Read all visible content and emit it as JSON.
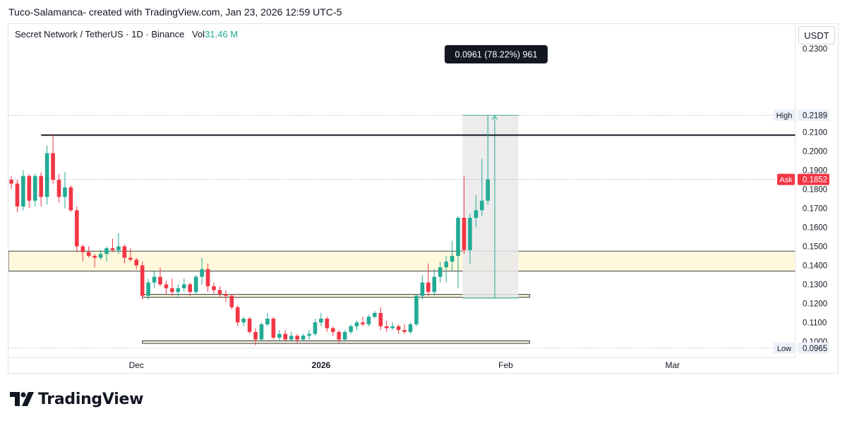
{
  "header": {
    "credit": "Tuco-Salamanca- created with TradingView.com, Jan 23, 2026 12:59 UTC-5"
  },
  "legend": {
    "symbol": "Secret Network / TetherUS · 1D · Binance",
    "vol_label": "Vol",
    "vol_value": "31.46 M"
  },
  "currency_button": "USDT",
  "footer": {
    "brand": "TradingView"
  },
  "colors": {
    "up": "#22ab94",
    "down": "#f23645",
    "zone_fill": "#fff8dc",
    "measure_fill": "#e9e9e9",
    "ask_bg": "#f23645",
    "high_low_bg": "#ebf1f9"
  },
  "chart_data": {
    "type": "candlestick",
    "symbol": "SCRT/USDT",
    "interval": "1D",
    "y_axis": {
      "range": [
        0.0955,
        0.2585
      ],
      "ticks": [
        0.1,
        0.11,
        0.12,
        0.13,
        0.14,
        0.15,
        0.16,
        0.17,
        0.18,
        0.19,
        0.2,
        0.21
      ],
      "tick_labels": [
        "0.1000",
        "0.1100",
        "0.1200",
        "0.1300",
        "0.1400",
        "0.1500",
        "0.1600",
        "0.1700",
        "0.1800",
        "0.1900",
        "0.2000",
        "0.2100"
      ],
      "top_partial_label": "0.2300"
    },
    "x_axis": {
      "start_date": "2025-11-10",
      "end_date": "2026-03-26",
      "tick_labels": [
        {
          "date": "2025-12-01",
          "label": "Dec",
          "bold": false
        },
        {
          "date": "2026-01-01",
          "label": "2026",
          "bold": true
        },
        {
          "date": "2026-02-01",
          "label": "Feb",
          "bold": false
        },
        {
          "date": "2026-03-01",
          "label": "Mar",
          "bold": false
        }
      ]
    },
    "candles": [
      {
        "date": "2025-11-10",
        "o": 0.185,
        "h": 0.187,
        "l": 0.18,
        "c": 0.183
      },
      {
        "date": "2025-11-11",
        "o": 0.183,
        "h": 0.185,
        "l": 0.168,
        "c": 0.171
      },
      {
        "date": "2025-11-12",
        "o": 0.171,
        "h": 0.19,
        "l": 0.169,
        "c": 0.187
      },
      {
        "date": "2025-11-13",
        "o": 0.187,
        "h": 0.188,
        "l": 0.17,
        "c": 0.174
      },
      {
        "date": "2025-11-14",
        "o": 0.174,
        "h": 0.188,
        "l": 0.171,
        "c": 0.187
      },
      {
        "date": "2025-11-15",
        "o": 0.187,
        "h": 0.189,
        "l": 0.171,
        "c": 0.176
      },
      {
        "date": "2025-11-16",
        "o": 0.176,
        "h": 0.203,
        "l": 0.172,
        "c": 0.199
      },
      {
        "date": "2025-11-17",
        "o": 0.199,
        "h": 0.209,
        "l": 0.183,
        "c": 0.185
      },
      {
        "date": "2025-11-18",
        "o": 0.185,
        "h": 0.188,
        "l": 0.173,
        "c": 0.176
      },
      {
        "date": "2025-11-19",
        "o": 0.176,
        "h": 0.189,
        "l": 0.17,
        "c": 0.181
      },
      {
        "date": "2025-11-20",
        "o": 0.181,
        "h": 0.182,
        "l": 0.168,
        "c": 0.169
      },
      {
        "date": "2025-11-21",
        "o": 0.169,
        "h": 0.171,
        "l": 0.147,
        "c": 0.15
      },
      {
        "date": "2025-11-22",
        "o": 0.15,
        "h": 0.151,
        "l": 0.142,
        "c": 0.147
      },
      {
        "date": "2025-11-23",
        "o": 0.147,
        "h": 0.15,
        "l": 0.144,
        "c": 0.145
      },
      {
        "date": "2025-11-24",
        "o": 0.145,
        "h": 0.146,
        "l": 0.139,
        "c": 0.144
      },
      {
        "date": "2025-11-25",
        "o": 0.144,
        "h": 0.148,
        "l": 0.143,
        "c": 0.146
      },
      {
        "date": "2025-11-26",
        "o": 0.146,
        "h": 0.15,
        "l": 0.142,
        "c": 0.149
      },
      {
        "date": "2025-11-27",
        "o": 0.149,
        "h": 0.154,
        "l": 0.147,
        "c": 0.148
      },
      {
        "date": "2025-11-28",
        "o": 0.148,
        "h": 0.157,
        "l": 0.146,
        "c": 0.15
      },
      {
        "date": "2025-11-29",
        "o": 0.15,
        "h": 0.151,
        "l": 0.141,
        "c": 0.144
      },
      {
        "date": "2025-11-30",
        "o": 0.144,
        "h": 0.149,
        "l": 0.142,
        "c": 0.143
      },
      {
        "date": "2025-12-01",
        "o": 0.143,
        "h": 0.144,
        "l": 0.138,
        "c": 0.14
      },
      {
        "date": "2025-12-02",
        "o": 0.14,
        "h": 0.142,
        "l": 0.122,
        "c": 0.124
      },
      {
        "date": "2025-12-03",
        "o": 0.124,
        "h": 0.133,
        "l": 0.122,
        "c": 0.131
      },
      {
        "date": "2025-12-04",
        "o": 0.131,
        "h": 0.137,
        "l": 0.128,
        "c": 0.134
      },
      {
        "date": "2025-12-05",
        "o": 0.134,
        "h": 0.139,
        "l": 0.129,
        "c": 0.13
      },
      {
        "date": "2025-12-06",
        "o": 0.13,
        "h": 0.132,
        "l": 0.125,
        "c": 0.128
      },
      {
        "date": "2025-12-07",
        "o": 0.128,
        "h": 0.133,
        "l": 0.124,
        "c": 0.126
      },
      {
        "date": "2025-12-08",
        "o": 0.126,
        "h": 0.13,
        "l": 0.123,
        "c": 0.128
      },
      {
        "date": "2025-12-09",
        "o": 0.128,
        "h": 0.133,
        "l": 0.126,
        "c": 0.13
      },
      {
        "date": "2025-12-10",
        "o": 0.13,
        "h": 0.131,
        "l": 0.124,
        "c": 0.126
      },
      {
        "date": "2025-12-11",
        "o": 0.126,
        "h": 0.135,
        "l": 0.125,
        "c": 0.134
      },
      {
        "date": "2025-12-12",
        "o": 0.134,
        "h": 0.144,
        "l": 0.13,
        "c": 0.138
      },
      {
        "date": "2025-12-13",
        "o": 0.138,
        "h": 0.141,
        "l": 0.126,
        "c": 0.129
      },
      {
        "date": "2025-12-14",
        "o": 0.129,
        "h": 0.131,
        "l": 0.125,
        "c": 0.127
      },
      {
        "date": "2025-12-15",
        "o": 0.127,
        "h": 0.129,
        "l": 0.123,
        "c": 0.125
      },
      {
        "date": "2025-12-16",
        "o": 0.125,
        "h": 0.127,
        "l": 0.121,
        "c": 0.124
      },
      {
        "date": "2025-12-17",
        "o": 0.124,
        "h": 0.125,
        "l": 0.117,
        "c": 0.118
      },
      {
        "date": "2025-12-18",
        "o": 0.118,
        "h": 0.119,
        "l": 0.108,
        "c": 0.11
      },
      {
        "date": "2025-12-19",
        "o": 0.11,
        "h": 0.113,
        "l": 0.108,
        "c": 0.112
      },
      {
        "date": "2025-12-20",
        "o": 0.112,
        "h": 0.113,
        "l": 0.104,
        "c": 0.105
      },
      {
        "date": "2025-12-21",
        "o": 0.105,
        "h": 0.107,
        "l": 0.098,
        "c": 0.101
      },
      {
        "date": "2025-12-22",
        "o": 0.101,
        "h": 0.11,
        "l": 0.1,
        "c": 0.109
      },
      {
        "date": "2025-12-23",
        "o": 0.109,
        "h": 0.115,
        "l": 0.108,
        "c": 0.112
      },
      {
        "date": "2025-12-24",
        "o": 0.112,
        "h": 0.113,
        "l": 0.101,
        "c": 0.102
      },
      {
        "date": "2025-12-25",
        "o": 0.102,
        "h": 0.106,
        "l": 0.1,
        "c": 0.104
      },
      {
        "date": "2025-12-26",
        "o": 0.104,
        "h": 0.106,
        "l": 0.1,
        "c": 0.101
      },
      {
        "date": "2025-12-27",
        "o": 0.101,
        "h": 0.105,
        "l": 0.1,
        "c": 0.103
      },
      {
        "date": "2025-12-28",
        "o": 0.103,
        "h": 0.104,
        "l": 0.099,
        "c": 0.101
      },
      {
        "date": "2025-12-29",
        "o": 0.101,
        "h": 0.104,
        "l": 0.1,
        "c": 0.103
      },
      {
        "date": "2025-12-30",
        "o": 0.103,
        "h": 0.106,
        "l": 0.101,
        "c": 0.104
      },
      {
        "date": "2025-12-31",
        "o": 0.104,
        "h": 0.112,
        "l": 0.103,
        "c": 0.11
      },
      {
        "date": "2026-01-01",
        "o": 0.11,
        "h": 0.115,
        "l": 0.108,
        "c": 0.112
      },
      {
        "date": "2026-01-02",
        "o": 0.112,
        "h": 0.113,
        "l": 0.105,
        "c": 0.107
      },
      {
        "date": "2026-01-03",
        "o": 0.107,
        "h": 0.108,
        "l": 0.103,
        "c": 0.105
      },
      {
        "date": "2026-01-04",
        "o": 0.105,
        "h": 0.106,
        "l": 0.099,
        "c": 0.101
      },
      {
        "date": "2026-01-05",
        "o": 0.101,
        "h": 0.106,
        "l": 0.1,
        "c": 0.105
      },
      {
        "date": "2026-01-06",
        "o": 0.105,
        "h": 0.109,
        "l": 0.104,
        "c": 0.108
      },
      {
        "date": "2026-01-07",
        "o": 0.108,
        "h": 0.111,
        "l": 0.106,
        "c": 0.11
      },
      {
        "date": "2026-01-08",
        "o": 0.11,
        "h": 0.113,
        "l": 0.108,
        "c": 0.109
      },
      {
        "date": "2026-01-09",
        "o": 0.109,
        "h": 0.114,
        "l": 0.108,
        "c": 0.113
      },
      {
        "date": "2026-01-10",
        "o": 0.113,
        "h": 0.116,
        "l": 0.112,
        "c": 0.115
      },
      {
        "date": "2026-01-11",
        "o": 0.115,
        "h": 0.118,
        "l": 0.106,
        "c": 0.108
      },
      {
        "date": "2026-01-12",
        "o": 0.108,
        "h": 0.111,
        "l": 0.105,
        "c": 0.107
      },
      {
        "date": "2026-01-13",
        "o": 0.107,
        "h": 0.11,
        "l": 0.106,
        "c": 0.108
      },
      {
        "date": "2026-01-14",
        "o": 0.108,
        "h": 0.109,
        "l": 0.104,
        "c": 0.106
      },
      {
        "date": "2026-01-15",
        "o": 0.106,
        "h": 0.109,
        "l": 0.104,
        "c": 0.105
      },
      {
        "date": "2026-01-16",
        "o": 0.105,
        "h": 0.11,
        "l": 0.104,
        "c": 0.109
      },
      {
        "date": "2026-01-17",
        "o": 0.109,
        "h": 0.125,
        "l": 0.108,
        "c": 0.124
      },
      {
        "date": "2026-01-18",
        "o": 0.124,
        "h": 0.135,
        "l": 0.122,
        "c": 0.131
      },
      {
        "date": "2026-01-19",
        "o": 0.131,
        "h": 0.141,
        "l": 0.124,
        "c": 0.126
      },
      {
        "date": "2026-01-20",
        "o": 0.126,
        "h": 0.138,
        "l": 0.124,
        "c": 0.134
      },
      {
        "date": "2026-01-21",
        "o": 0.134,
        "h": 0.142,
        "l": 0.131,
        "c": 0.139
      },
      {
        "date": "2026-01-22",
        "o": 0.139,
        "h": 0.145,
        "l": 0.131,
        "c": 0.142
      },
      {
        "date": "2026-01-23",
        "o": 0.142,
        "h": 0.153,
        "l": 0.137,
        "c": 0.145
      },
      {
        "date": "2026-01-24",
        "o": 0.145,
        "h": 0.166,
        "l": 0.128,
        "c": 0.165
      },
      {
        "date": "2026-01-25",
        "o": 0.165,
        "h": 0.187,
        "l": 0.146,
        "c": 0.148
      },
      {
        "date": "2026-01-26",
        "o": 0.148,
        "h": 0.167,
        "l": 0.141,
        "c": 0.165
      },
      {
        "date": "2026-01-27",
        "o": 0.165,
        "h": 0.177,
        "l": 0.16,
        "c": 0.169
      },
      {
        "date": "2026-01-28",
        "o": 0.169,
        "h": 0.196,
        "l": 0.166,
        "c": 0.174
      },
      {
        "date": "2026-01-29",
        "o": 0.174,
        "h": 0.2189,
        "l": 0.172,
        "c": 0.1852
      }
    ],
    "horizontal_lines": [
      {
        "price": 0.2085,
        "color": "#131722"
      }
    ],
    "zones": [
      {
        "top": 0.1475,
        "bottom": 0.137,
        "start": "2025-11-10",
        "end": "2026-03-26"
      },
      {
        "top": 0.1247,
        "bottom": 0.1232,
        "start": "2025-12-02",
        "end": "2026-02-05"
      },
      {
        "top": 0.1003,
        "bottom": 0.099,
        "start": "2025-12-02",
        "end": "2026-02-05"
      }
    ],
    "measure_tool": {
      "from_price": 0.1228,
      "to_price": 0.2189,
      "start_date": "2026-01-25",
      "end_date": "2026-02-03",
      "label": "0.0961 (78.22%) 961"
    },
    "price_labels": [
      {
        "name": "high",
        "title": "High",
        "value": "0.2189",
        "price": 0.2189
      },
      {
        "name": "ask",
        "title": "Ask",
        "value": "0.1852",
        "price": 0.1852
      },
      {
        "name": "low",
        "title": "Low",
        "value": "0.0965",
        "price": 0.0965
      }
    ]
  }
}
